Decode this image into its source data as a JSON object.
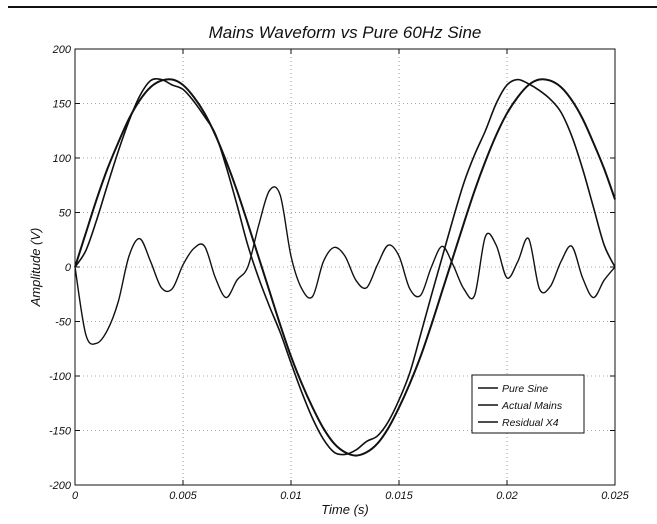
{
  "chart_data": {
    "type": "line",
    "title": "Mains Waveform vs Pure 60Hz Sine",
    "xlabel": "Time (s)",
    "ylabel": "Amplitude (V)",
    "xlim": [
      0,
      0.025
    ],
    "ylim": [
      -200,
      200
    ],
    "grid": true,
    "legend_position": "bottom-right",
    "x_ticks": [
      0,
      0.005,
      0.01,
      0.015,
      0.02,
      0.025
    ],
    "x_tick_labels": [
      "0",
      "0.005",
      "0.01",
      "0.015",
      "0.02",
      "0.025"
    ],
    "y_ticks": [
      -200,
      -150,
      -100,
      -50,
      0,
      50,
      100,
      150,
      200
    ],
    "y_tick_labels": [
      "-200",
      "-150",
      "-100",
      "-50",
      "0",
      "50",
      "100",
      "150",
      "200"
    ],
    "x": [
      0,
      0.0005,
      0.001,
      0.0015,
      0.002,
      0.0025,
      0.003,
      0.0035,
      0.004,
      0.0045,
      0.005,
      0.0055,
      0.006,
      0.0065,
      0.007,
      0.0075,
      0.008,
      0.0085,
      0.009,
      0.0095,
      0.01,
      0.0105,
      0.011,
      0.0115,
      0.012,
      0.0125,
      0.013,
      0.0135,
      0.014,
      0.0145,
      0.015,
      0.0155,
      0.016,
      0.0165,
      0.017,
      0.0175,
      0.018,
      0.0185,
      0.019,
      0.0195,
      0.02,
      0.0205,
      0.021,
      0.0215,
      0.022,
      0.0225,
      0.023,
      0.0235,
      0.024,
      0.0245,
      0.025
    ],
    "series": [
      {
        "name": "Pure Sine",
        "values": [
          0,
          31,
          62,
          90,
          114,
          136,
          153,
          165,
          171,
          172,
          167,
          156,
          141,
          121,
          97,
          70,
          40,
          9,
          -22,
          -53,
          -82,
          -107,
          -129,
          -148,
          -162,
          -170,
          -173,
          -170,
          -162,
          -148,
          -129,
          -107,
          -82,
          -53,
          -22,
          9,
          40,
          70,
          97,
          121,
          141,
          156,
          167,
          172,
          171,
          165,
          153,
          136,
          114,
          90,
          62
        ]
      },
      {
        "name": "Actual Mains",
        "values": [
          0,
          15,
          43,
          75,
          106,
          134,
          157,
          171,
          172,
          167,
          163,
          152,
          138,
          122,
          92,
          57,
          20,
          -10,
          -36,
          -60,
          -88,
          -115,
          -139,
          -158,
          -170,
          -172,
          -168,
          -160,
          -155,
          -142,
          -122,
          -97,
          -62,
          -26,
          9,
          44,
          77,
          103,
          125,
          150,
          167,
          172,
          168,
          162,
          154,
          142,
          120,
          90,
          55,
          20,
          0
        ]
      },
      {
        "name": "Residual X4",
        "values": [
          0,
          -62,
          -70,
          -58,
          -32,
          10,
          26,
          5,
          -19,
          -20,
          2,
          17,
          19,
          -10,
          -28,
          -12,
          0,
          38,
          70,
          66,
          10,
          -20,
          -27,
          5,
          18,
          10,
          -12,
          -19,
          2,
          20,
          10,
          -20,
          -26,
          0,
          19,
          2,
          -20,
          -26,
          28,
          20,
          -10,
          5,
          26,
          -20,
          -18,
          5,
          19,
          -10,
          -28,
          -12,
          0
        ]
      }
    ]
  }
}
